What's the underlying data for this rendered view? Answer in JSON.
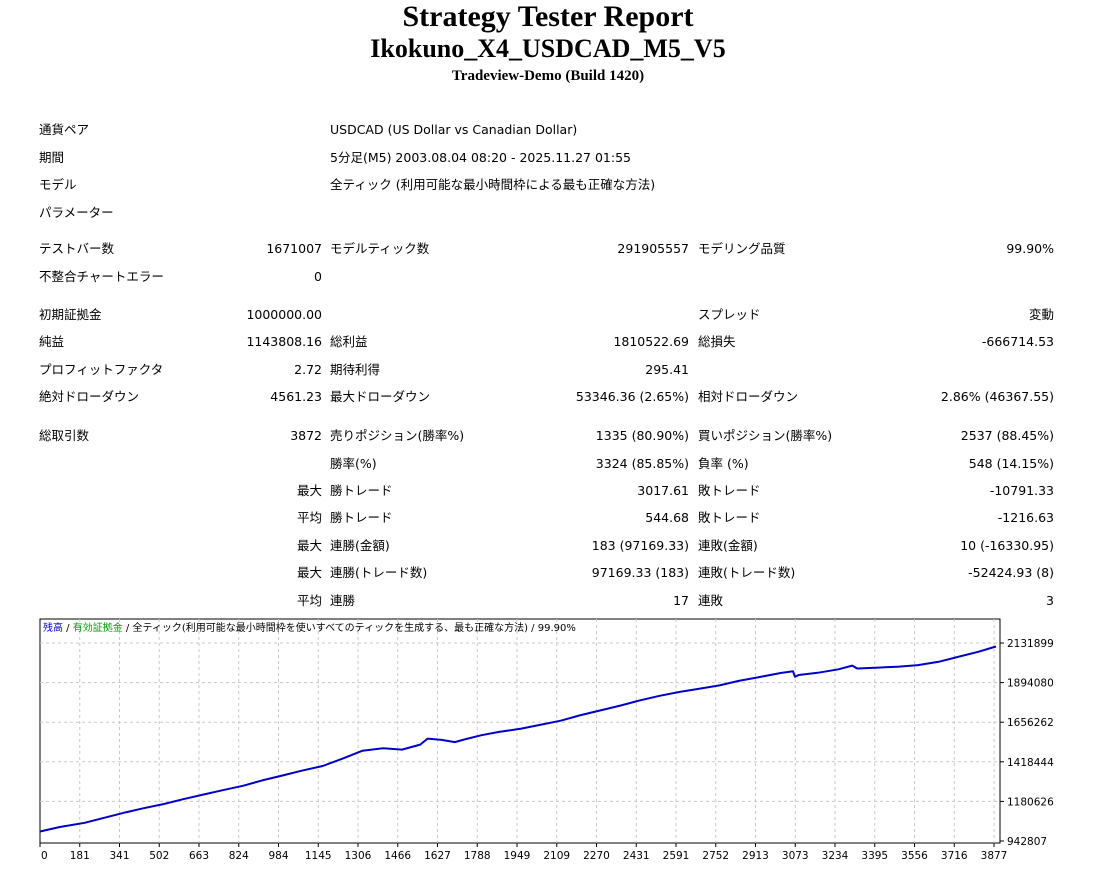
{
  "header": {
    "title": "Strategy Tester Report",
    "subtitle": "Ikokuno_X4_USDCAD_M5_V5",
    "build": "Tradeview-Demo (Build 1420)"
  },
  "settings": {
    "symbol_label": "通貨ペア",
    "symbol_value": "USDCAD (US Dollar vs Canadian Dollar)",
    "period_label": "期間",
    "period_value": "5分足(M5) 2003.08.04 08:20 - 2025.11.27 01:55",
    "model_label": "モデル",
    "model_value": "全ティック (利用可能な最小時間枠による最も正確な方法)",
    "params_label": "パラメーター"
  },
  "stats": {
    "bars_label": "テストバー数",
    "bars_value": "1671007",
    "ticks_label": "モデルティック数",
    "ticks_value": "291905557",
    "quality_label": "モデリング品質",
    "quality_value": "99.90%",
    "mismatch_label": "不整合チャートエラー",
    "mismatch_value": "0",
    "deposit_label": "初期証拠金",
    "deposit_value": "1000000.00",
    "spread_label": "スプレッド",
    "spread_value": "変動",
    "net_label": "純益",
    "net_value": "1143808.16",
    "gross_profit_label": "総利益",
    "gross_profit_value": "1810522.69",
    "gross_loss_label": "総損失",
    "gross_loss_value": "-666714.53",
    "pf_label": "プロフィットファクタ",
    "pf_value": "2.72",
    "expected_label": "期待利得",
    "expected_value": "295.41",
    "abs_dd_label": "絶対ドローダウン",
    "abs_dd_value": "4561.23",
    "max_dd_label": "最大ドローダウン",
    "max_dd_value": "53346.36 (2.65%)",
    "rel_dd_label": "相対ドローダウン",
    "rel_dd_value": "2.86% (46367.55)"
  },
  "trades": {
    "total_label": "総取引数",
    "total_value": "3872",
    "short_label": "売りポジション(勝率%)",
    "short_value": "1335 (80.90%)",
    "long_label": "買いポジション(勝率%)",
    "long_value": "2537 (88.45%)",
    "win_rate_label": "勝率(%)",
    "win_rate_value": "3324 (85.85%)",
    "loss_rate_label": "負率 (%)",
    "loss_rate_value": "548 (14.15%)",
    "max_prefix": "最大",
    "avg_prefix": "平均",
    "largest_win_label": "勝トレード",
    "largest_win_value": "3017.61",
    "largest_loss_label": "敗トレード",
    "largest_loss_value": "-10791.33",
    "avg_win_label": "勝トレード",
    "avg_win_value": "544.68",
    "avg_loss_label": "敗トレード",
    "avg_loss_value": "-1216.63",
    "max_consec_win_amt_label": "連勝(金額)",
    "max_consec_win_amt_value": "183 (97169.33)",
    "max_consec_loss_amt_label": "連敗(金額)",
    "max_consec_loss_amt_value": "10 (-16330.95)",
    "max_consec_win_cnt_label": "連勝(トレード数)",
    "max_consec_win_cnt_value": "97169.33 (183)",
    "max_consec_loss_cnt_label": "連敗(トレード数)",
    "max_consec_loss_cnt_value": "-52424.93 (8)",
    "avg_consec_win_label": "連勝",
    "avg_consec_win_value": "17",
    "avg_consec_loss_label": "連敗",
    "avg_consec_loss_value": "3"
  },
  "legend": {
    "balance": "残高",
    "separator": " / ",
    "margin": "有効証拠金",
    "model_text": "全ティック(利用可能な最小時間枠を使いすべてのティックを生成する、最も正確な方法)",
    "quality": "99.90%",
    "colors": {
      "balance": "#0000c8",
      "margin": "#00a000",
      "text": "#000000"
    }
  },
  "chart_data": {
    "type": "line",
    "title": "",
    "xlabel": "",
    "ylabel": "",
    "x_ticks": [
      "0",
      "181",
      "341",
      "502",
      "663",
      "824",
      "984",
      "1145",
      "1306",
      "1466",
      "1627",
      "1788",
      "1949",
      "2109",
      "2270",
      "2431",
      "2591",
      "2752",
      "2913",
      "3073",
      "3234",
      "3395",
      "3556",
      "3716",
      "3877"
    ],
    "y_ticks": [
      "2131899",
      "1894080",
      "1656262",
      "1418444",
      "1180626",
      "942807"
    ],
    "xlim": [
      0,
      3872
    ],
    "ylim": [
      942807,
      2131899
    ],
    "grid": true,
    "line_color": "#0000c8",
    "series": [
      {
        "name": "残高",
        "x": [
          0,
          80,
          181,
          260,
          341,
          420,
          502,
          580,
          663,
          740,
          824,
          900,
          984,
          1060,
          1145,
          1230,
          1306,
          1390,
          1466,
          1540,
          1570,
          1627,
          1680,
          1720,
          1788,
          1860,
          1949,
          2030,
          2109,
          2190,
          2270,
          2350,
          2431,
          2510,
          2591,
          2670,
          2752,
          2830,
          2913,
          3000,
          3050,
          3058,
          3073,
          3150,
          3234,
          3290,
          3310,
          3395,
          3480,
          3556,
          3640,
          3716,
          3800,
          3872
        ],
        "y": [
          1000000,
          1027000,
          1052000,
          1082000,
          1113000,
          1140000,
          1165000,
          1194000,
          1222000,
          1248000,
          1275000,
          1307000,
          1337000,
          1365000,
          1393000,
          1440000,
          1485000,
          1500000,
          1492000,
          1522000,
          1558000,
          1550000,
          1537000,
          1553000,
          1578000,
          1598000,
          1618000,
          1642000,
          1665000,
          1699000,
          1727000,
          1756000,
          1788000,
          1815000,
          1838000,
          1857000,
          1877000,
          1904000,
          1927000,
          1952000,
          1962000,
          1929000,
          1940000,
          1953000,
          1974000,
          1996000,
          1979000,
          1984000,
          1990000,
          1999000,
          2019000,
          2048000,
          2079000,
          2111000
        ]
      }
    ]
  }
}
